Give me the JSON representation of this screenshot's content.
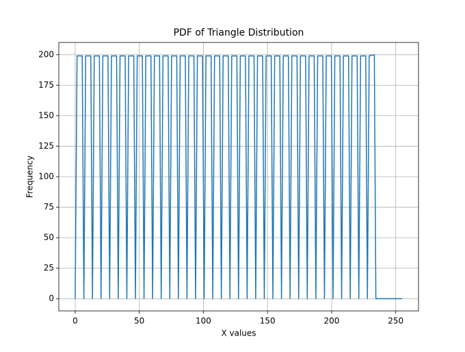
{
  "chart_data": {
    "type": "line",
    "title": "PDF of Triangle Distribution",
    "x_label": "X values",
    "y_label": "Frequency",
    "series": [
      {
        "color": "#1f77b4",
        "x": [
          0,
          1.5,
          5.5,
          6.8,
          8.2,
          12.2,
          13.5,
          14.9,
          18.9,
          20.2,
          21.6,
          25.6,
          26.9,
          28.3,
          32.3,
          33.6,
          35.0,
          39.0,
          40.3,
          41.7,
          45.7,
          47.0,
          48.4,
          52.4,
          53.7,
          55.1,
          59.1,
          60.4,
          61.8,
          65.8,
          67.1,
          68.5,
          72.5,
          73.8,
          75.2,
          79.2,
          80.5,
          81.9,
          85.9,
          87.2,
          88.6,
          92.6,
          93.9,
          95.3,
          99.3,
          100.6,
          102.0,
          106.0,
          107.3,
          108.7,
          112.7,
          114.0,
          115.4,
          119.4,
          120.7,
          122.1,
          126.1,
          127.4,
          128.8,
          132.8,
          134.1,
          135.5,
          139.5,
          140.8,
          142.2,
          146.2,
          147.5,
          148.9,
          152.9,
          154.2,
          155.6,
          159.6,
          160.9,
          162.3,
          166.3,
          167.6,
          169.0,
          173.0,
          174.3,
          175.7,
          179.7,
          181.0,
          182.4,
          186.4,
          187.7,
          189.1,
          193.1,
          194.4,
          195.8,
          199.8,
          201.1,
          202.5,
          206.5,
          207.8,
          209.2,
          213.2,
          214.5,
          215.9,
          219.9,
          221.2,
          222.6,
          226.6,
          227.9,
          229.3,
          233.3,
          234.5,
          255
        ],
        "values": [
          0,
          199,
          199,
          0,
          199,
          199,
          0,
          199,
          199,
          0,
          199,
          199,
          0,
          199,
          199,
          0,
          199,
          199,
          0,
          199,
          199,
          0,
          199,
          199,
          0,
          199,
          199,
          0,
          199,
          199,
          0,
          199,
          199,
          0,
          199,
          199,
          0,
          199,
          199,
          0,
          199,
          199,
          0,
          199,
          199,
          0,
          199,
          199,
          0,
          199,
          199,
          0,
          199,
          199,
          0,
          199,
          199,
          0,
          199,
          199,
          0,
          199,
          199,
          0,
          199,
          199,
          0,
          199,
          199,
          0,
          199,
          199,
          0,
          199,
          199,
          0,
          199,
          199,
          0,
          199,
          199,
          0,
          199,
          199,
          0,
          199,
          199,
          0,
          199,
          199,
          0,
          199,
          199,
          0,
          199,
          199,
          0,
          199,
          199,
          0,
          199,
          199,
          0,
          199,
          200,
          0,
          0
        ]
      }
    ],
    "xlim": [
      -12.75,
      267.75
    ],
    "xticks": [
      0,
      50,
      100,
      150,
      200,
      250
    ],
    "ylim": [
      -10,
      210
    ],
    "yticks": [
      0,
      25,
      50,
      75,
      100,
      125,
      150,
      175,
      200
    ],
    "grid": true
  }
}
